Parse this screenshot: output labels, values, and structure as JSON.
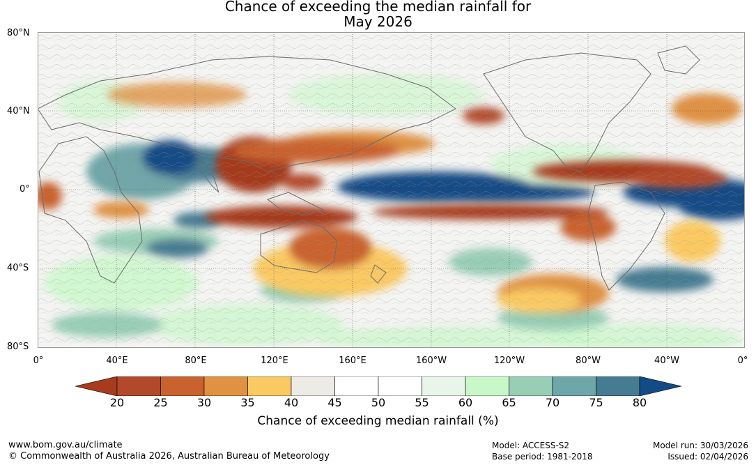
{
  "title": {
    "line1": "Chance of exceeding the median rainfall for",
    "line2": "May 2026"
  },
  "axes": {
    "lat_labels": [
      "80°N",
      "40°N",
      "0°",
      "40°S",
      "80°S"
    ],
    "lon_labels": [
      "0°",
      "40°E",
      "80°E",
      "120°E",
      "160°E",
      "160°W",
      "120°W",
      "80°W",
      "40°W",
      "0°"
    ]
  },
  "legend": {
    "title": "Chance of exceeding median rainfall (%)",
    "ticks": [
      "20",
      "25",
      "30",
      "35",
      "40",
      "45",
      "50",
      "55",
      "60",
      "65",
      "70",
      "75",
      "80"
    ],
    "colors": [
      "#a63b1e",
      "#b2492a",
      "#c9622e",
      "#e09142",
      "#fbc962",
      "#ecebe6",
      "#ffffff",
      "#ffffff",
      "#e8f5e8",
      "#c8f7c8",
      "#98cdb6",
      "#6fa6a8",
      "#467c92",
      "#134b85"
    ]
  },
  "footer": {
    "url": "www.bom.gov.au/climate",
    "copyright": "© Commonwealth of Australia 2026, Australian Bureau of Meteorology",
    "model": "Model: ACCESS-S2",
    "base_period": "Base period: 1981-2018",
    "model_run": "Model run: 30/03/2026",
    "issued": "Issued: 02/04/2026"
  }
}
